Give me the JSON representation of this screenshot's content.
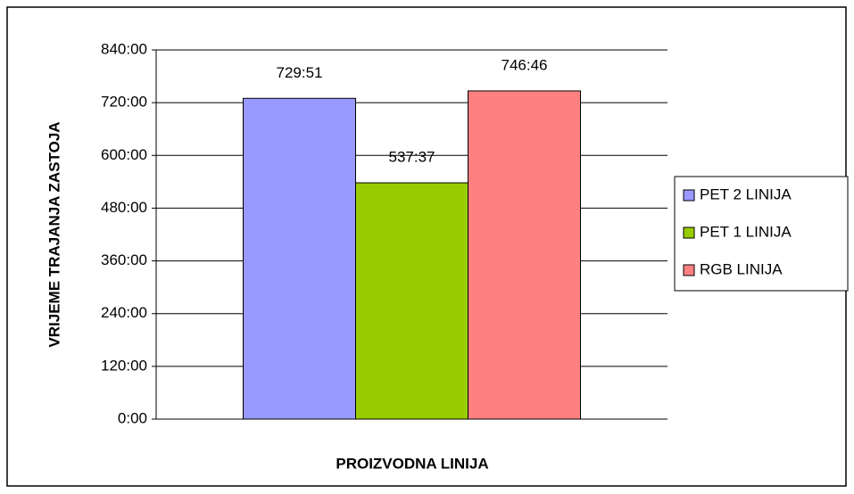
{
  "chart_data": {
    "type": "bar",
    "y_label": "VRIJEME TRAJANJA ZASTOJA",
    "x_label": "PROIZVODNA LINIJA",
    "categories": [
      null
    ],
    "series": [
      {
        "name": "PET 2 LINIJA",
        "color": "#9999ff",
        "values": [
          729.85
        ],
        "value_labels": [
          "729:51"
        ]
      },
      {
        "name": "PET 1 LINIJA",
        "color": "#99cc00",
        "values": [
          537.6167
        ],
        "value_labels": [
          "537:37"
        ]
      },
      {
        "name": "RGB LINIJA",
        "color": "#ff8080",
        "values": [
          746.7667
        ],
        "value_labels": [
          "746:46"
        ]
      }
    ],
    "ylim": [
      0,
      840
    ],
    "yticks": [
      {
        "value": 0,
        "label": "0:00"
      },
      {
        "value": 120,
        "label": "120:00"
      },
      {
        "value": 240,
        "label": "240:00"
      },
      {
        "value": 360,
        "label": "360:00"
      },
      {
        "value": 480,
        "label": "480:00"
      },
      {
        "value": 600,
        "label": "600:00"
      },
      {
        "value": 720,
        "label": "720:00"
      },
      {
        "value": 840,
        "label": "840:00"
      }
    ],
    "grid": true,
    "legend": "right"
  }
}
